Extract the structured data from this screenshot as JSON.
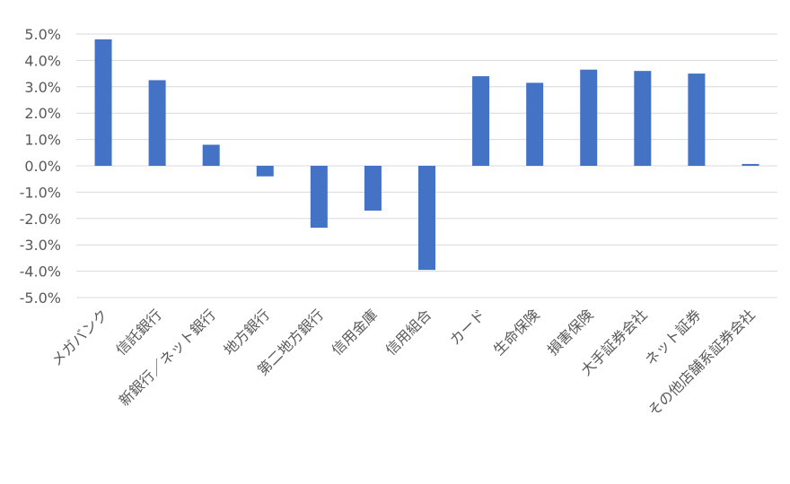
{
  "chart_data": {
    "type": "bar",
    "title": "",
    "xlabel": "",
    "ylabel": "",
    "ylim": [
      -0.05,
      0.05
    ],
    "y_ticks": [
      "5.0%",
      "4.0%",
      "3.0%",
      "2.0%",
      "1.0%",
      "0.0%",
      "-1.0%",
      "-2.0%",
      "-3.0%",
      "-4.0%",
      "-5.0%"
    ],
    "grid": true,
    "legend": "none",
    "categories": [
      "メガバンク",
      "信託銀行",
      "新銀行／ネット銀行",
      "地方銀行",
      "第二地方銀行",
      "信用金庫",
      "信用組合",
      "カード",
      "生命保険",
      "損害保険",
      "大手証券会社",
      "ネット証券",
      "その他店舗系証券会社"
    ],
    "series": [
      {
        "color": "#4472c4",
        "values": [
          0.048,
          0.0325,
          0.008,
          -0.004,
          -0.0235,
          -0.017,
          -0.0395,
          0.034,
          0.0315,
          0.0365,
          0.036,
          0.035,
          0.0007
        ]
      }
    ]
  }
}
